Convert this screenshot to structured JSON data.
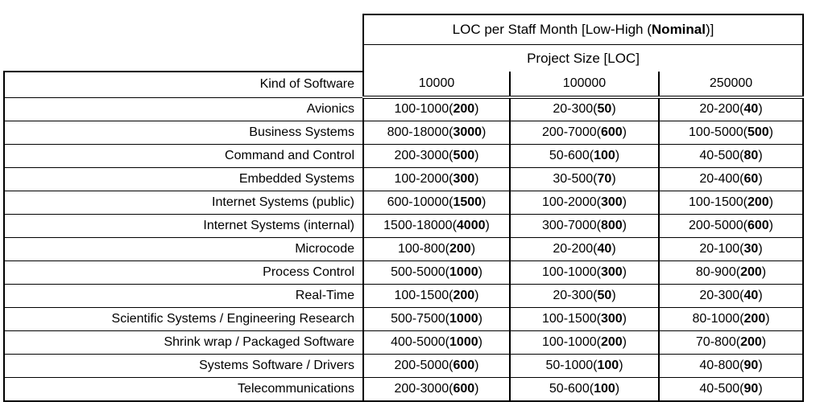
{
  "table": {
    "title": {
      "prefix": "LOC per Staff Month [Low-High (",
      "bold": "Nominal",
      "suffix": ")]"
    },
    "subtitle": "Project Size [LOC]",
    "row_header": "Kind of Software",
    "sizes": [
      "10000",
      "100000",
      "250000"
    ],
    "rows": [
      {
        "label": "Avionics",
        "cells": [
          {
            "low": 100,
            "high": 1000,
            "nominal": 200
          },
          {
            "low": 20,
            "high": 300,
            "nominal": 50
          },
          {
            "low": 20,
            "high": 200,
            "nominal": 40
          }
        ]
      },
      {
        "label": "Business Systems",
        "cells": [
          {
            "low": 800,
            "high": 18000,
            "nominal": 3000
          },
          {
            "low": 200,
            "high": 7000,
            "nominal": 600
          },
          {
            "low": 100,
            "high": 5000,
            "nominal": 500
          }
        ]
      },
      {
        "label": "Command and Control",
        "cells": [
          {
            "low": 200,
            "high": 3000,
            "nominal": 500
          },
          {
            "low": 50,
            "high": 600,
            "nominal": 100
          },
          {
            "low": 40,
            "high": 500,
            "nominal": 80
          }
        ]
      },
      {
        "label": "Embedded Systems",
        "cells": [
          {
            "low": 100,
            "high": 2000,
            "nominal": 300
          },
          {
            "low": 30,
            "high": 500,
            "nominal": 70
          },
          {
            "low": 20,
            "high": 400,
            "nominal": 60
          }
        ]
      },
      {
        "label": "Internet Systems (public)",
        "cells": [
          {
            "low": 600,
            "high": 10000,
            "nominal": 1500
          },
          {
            "low": 100,
            "high": 2000,
            "nominal": 300
          },
          {
            "low": 100,
            "high": 1500,
            "nominal": 200
          }
        ]
      },
      {
        "label": "Internet Systems (internal)",
        "cells": [
          {
            "low": 1500,
            "high": 18000,
            "nominal": 4000
          },
          {
            "low": 300,
            "high": 7000,
            "nominal": 800
          },
          {
            "low": 200,
            "high": 5000,
            "nominal": 600
          }
        ]
      },
      {
        "label": "Microcode",
        "cells": [
          {
            "low": 100,
            "high": 800,
            "nominal": 200
          },
          {
            "low": 20,
            "high": 200,
            "nominal": 40
          },
          {
            "low": 20,
            "high": 100,
            "nominal": 30
          }
        ]
      },
      {
        "label": "Process Control",
        "cells": [
          {
            "low": 500,
            "high": 5000,
            "nominal": 1000
          },
          {
            "low": 100,
            "high": 1000,
            "nominal": 300
          },
          {
            "low": 80,
            "high": 900,
            "nominal": 200
          }
        ]
      },
      {
        "label": "Real-Time",
        "cells": [
          {
            "low": 100,
            "high": 1500,
            "nominal": 200
          },
          {
            "low": 20,
            "high": 300,
            "nominal": 50
          },
          {
            "low": 20,
            "high": 300,
            "nominal": 40
          }
        ]
      },
      {
        "label": "Scientific Systems / Engineering Research",
        "cells": [
          {
            "low": 500,
            "high": 7500,
            "nominal": 1000
          },
          {
            "low": 100,
            "high": 1500,
            "nominal": 300
          },
          {
            "low": 80,
            "high": 1000,
            "nominal": 200
          }
        ]
      },
      {
        "label": "Shrink wrap / Packaged Software",
        "cells": [
          {
            "low": 400,
            "high": 5000,
            "nominal": 1000
          },
          {
            "low": 100,
            "high": 1000,
            "nominal": 200
          },
          {
            "low": 70,
            "high": 800,
            "nominal": 200
          }
        ]
      },
      {
        "label": "Systems Software / Drivers",
        "cells": [
          {
            "low": 200,
            "high": 5000,
            "nominal": 600
          },
          {
            "low": 50,
            "high": 1000,
            "nominal": 100
          },
          {
            "low": 40,
            "high": 800,
            "nominal": 90
          }
        ]
      },
      {
        "label": "Telecommunications",
        "cells": [
          {
            "low": 200,
            "high": 3000,
            "nominal": 600
          },
          {
            "low": 50,
            "high": 600,
            "nominal": 100
          },
          {
            "low": 40,
            "high": 500,
            "nominal": 90
          }
        ]
      }
    ]
  }
}
